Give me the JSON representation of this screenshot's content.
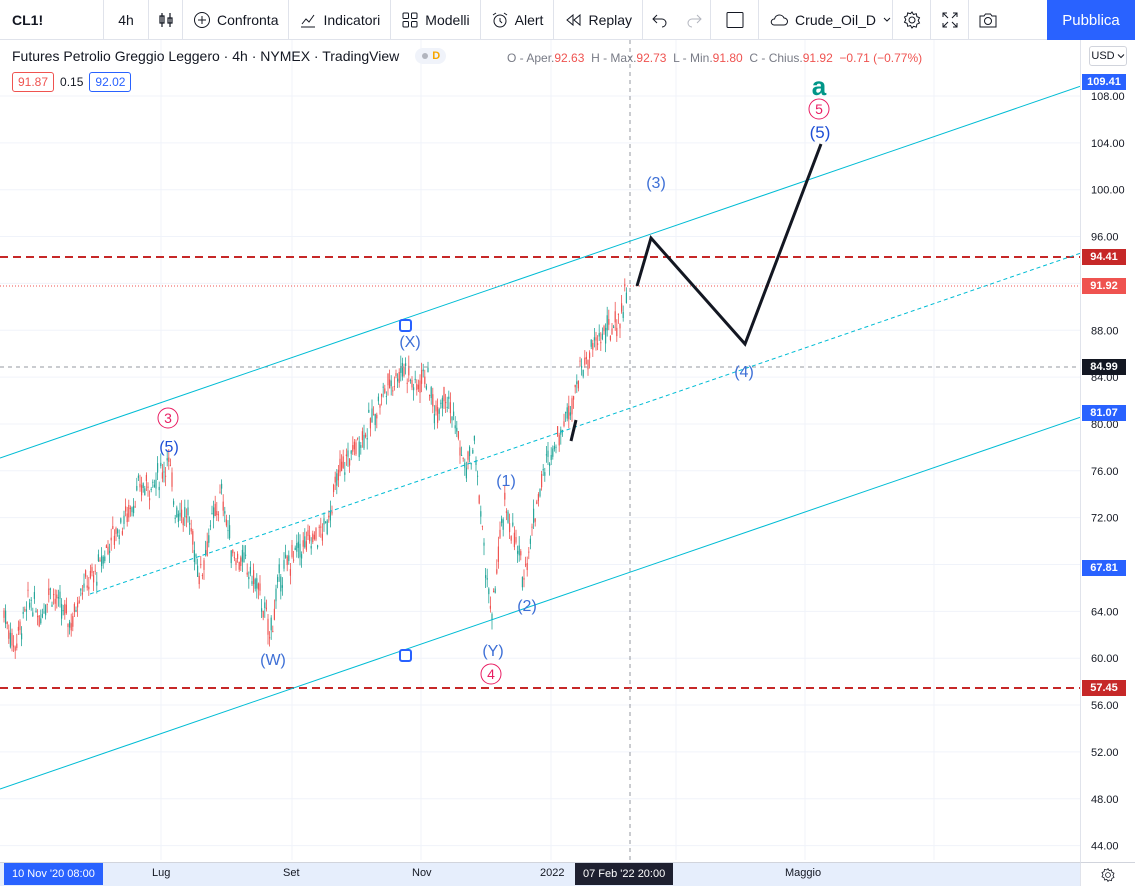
{
  "toolbar": {
    "symbol": "CL1!",
    "timeframe": "4h",
    "compare": "Confronta",
    "indicators": "Indicatori",
    "templates": "Modelli",
    "alert": "Alert",
    "replay": "Replay",
    "layout_name": "Crude_Oil_D",
    "publish": "Pubblica"
  },
  "legend": {
    "title": "Futures Petrolio Greggio Leggero · 4h · NYMEX · TradingView",
    "badge_d": "D",
    "ohlc_o_label": "O - Aper.",
    "ohlc_o": "92.63",
    "ohlc_h_label": "H - Max.",
    "ohlc_h": "92.73",
    "ohlc_l_label": "L - Min.",
    "ohlc_l": "91.80",
    "ohlc_c_label": "C - Chius.",
    "ohlc_c": "91.92",
    "change": "−0.71 (−0.77%)",
    "bid": "91.87",
    "spread": "0.15",
    "ask": "92.02"
  },
  "currency": "USD",
  "price_axis": {
    "ticks": [
      "108.00",
      "104.00",
      "100.00",
      "96.00",
      "88.00",
      "84.00",
      "80.00",
      "76.00",
      "72.00",
      "64.00",
      "60.00",
      "56.00",
      "52.00",
      "48.00",
      "44.00"
    ],
    "labels": {
      "top": "109.41",
      "level_high": "94.41",
      "last": "91.92",
      "crosshair": "84.99",
      "c81": "81.07",
      "c67": "67.81",
      "level_low": "57.45"
    }
  },
  "time_axis": {
    "start": "10 Nov '20  08:00",
    "ticks": [
      "Lug",
      "Set",
      "Nov",
      "2022",
      "Maggio"
    ],
    "crosshair": "07 Feb '22   20:00"
  },
  "waves": {
    "w": "(W)",
    "x": "(X)",
    "y": "(Y)",
    "one": "(1)",
    "two": "(2)",
    "three": "(3)",
    "four": "(4)",
    "five": "(5)",
    "five_left": "(5)",
    "circ3": "3",
    "circ4": "4",
    "circ5": "5",
    "a": "a"
  },
  "colors": {
    "up": "#26a69a",
    "down": "#ef5350",
    "channel": "#00bcd4",
    "wave_label": "#2962ff",
    "circle_label": "#e91e63",
    "level": "#c62828",
    "accent": "#2962ff"
  }
}
